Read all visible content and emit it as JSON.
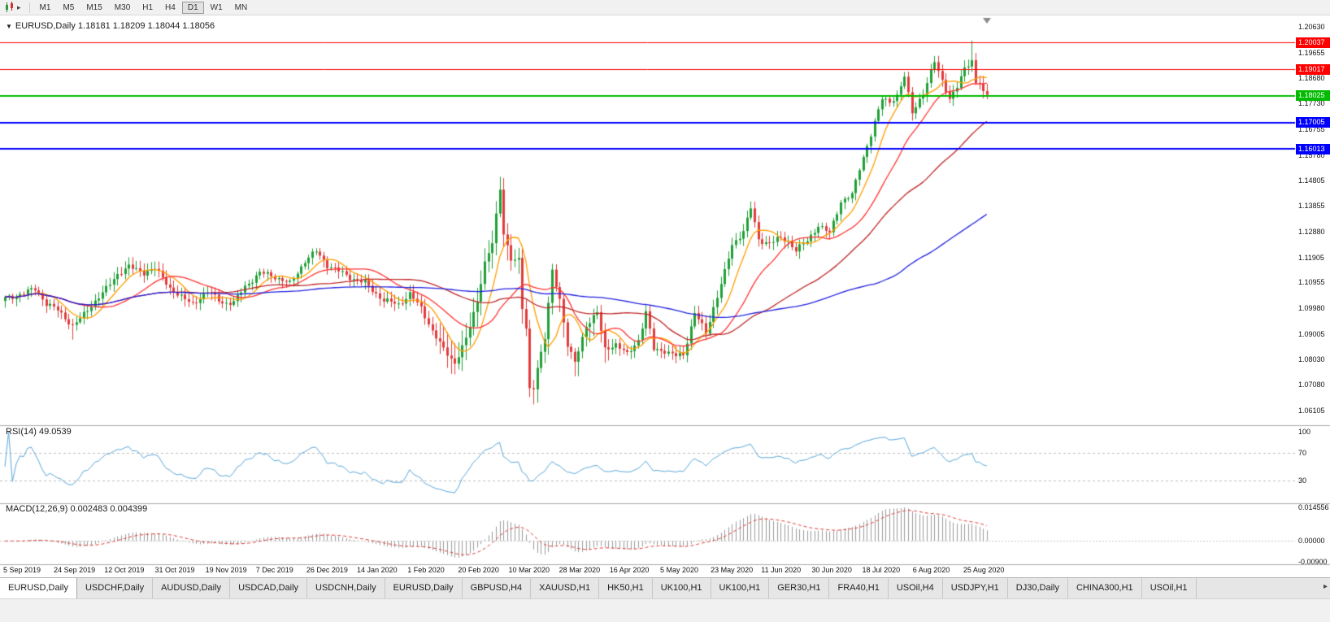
{
  "toolbar": {
    "timeframes": [
      "M1",
      "M5",
      "M15",
      "M30",
      "H1",
      "H4",
      "D1",
      "W1",
      "MN"
    ],
    "active_timeframe": "D1"
  },
  "chart": {
    "title_text": "EURUSD,Daily 1.18181 1.18209 1.18044 1.18056",
    "dropdown_icon": "▼"
  },
  "chart_data": {
    "type": "candlestick",
    "symbol": "EURUSD",
    "timeframe": "Daily",
    "ohlc": {
      "open": 1.18181,
      "high": 1.18209,
      "low": 1.18044,
      "close": 1.18056
    },
    "price_axis": {
      "max": 1.2063,
      "min": 1.06105,
      "labels": [
        "1.20630",
        "1.19655",
        "1.18680",
        "1.17730",
        "1.16755",
        "1.15780",
        "1.14805",
        "1.13855",
        "1.12880",
        "1.11905",
        "1.10955",
        "1.09980",
        "1.09005",
        "1.08030",
        "1.07080",
        "1.06105"
      ]
    },
    "date_axis_labels": [
      "5 Sep 2019",
      "24 Sep 2019",
      "12 Oct 2019",
      "31 Oct 2019",
      "19 Nov 2019",
      "7 Dec 2019",
      "26 Dec 2019",
      "14 Jan 2020",
      "1 Feb 2020",
      "20 Feb 2020",
      "10 Mar 2020",
      "28 Mar 2020",
      "16 Apr 2020",
      "5 May 2020",
      "23 May 2020",
      "11 Jun 2020",
      "30 Jun 2020",
      "18 Jul 2020",
      "6 Aug 2020",
      "25 Aug 2020"
    ],
    "horizontal_lines": [
      {
        "price": 1.20037,
        "label": "1.20037",
        "color": "#ff0000",
        "width": 1
      },
      {
        "price": 1.19017,
        "label": "1.19017",
        "color": "#ff0000",
        "width": 1
      },
      {
        "price": 1.18025,
        "label": "1.18025",
        "color": "#00bb00",
        "width": 2
      },
      {
        "price": 1.17005,
        "label": "1.17005",
        "color": "#0000ff",
        "width": 2
      },
      {
        "price": 1.16013,
        "label": "1.16013",
        "color": "#0000ff",
        "width": 2
      }
    ],
    "bars_total": 263,
    "anchors": [
      [
        0,
        1.1035
      ],
      [
        4,
        1.105
      ],
      [
        8,
        1.1072
      ],
      [
        11,
        1.1015
      ],
      [
        14,
        1.0992
      ],
      [
        18,
        1.093
      ],
      [
        21,
        1.0975
      ],
      [
        25,
        1.104
      ],
      [
        30,
        1.1125
      ],
      [
        33,
        1.1158
      ],
      [
        37,
        1.113
      ],
      [
        40,
        1.1152
      ],
      [
        44,
        1.1072
      ],
      [
        50,
        1.1012
      ],
      [
        54,
        1.1062
      ],
      [
        58,
        1.1018
      ],
      [
        61,
        1.102
      ],
      [
        64,
        1.108
      ],
      [
        68,
        1.1132
      ],
      [
        72,
        1.1118
      ],
      [
        76,
        1.109
      ],
      [
        80,
        1.1178
      ],
      [
        83,
        1.1212
      ],
      [
        86,
        1.1162
      ],
      [
        91,
        1.1122
      ],
      [
        96,
        1.1092
      ],
      [
        101,
        1.1028
      ],
      [
        105,
        1.1012
      ],
      [
        108,
        1.1052
      ],
      [
        111,
        1.0998
      ],
      [
        114,
        1.0912
      ],
      [
        117,
        1.0842
      ],
      [
        120,
        1.079
      ],
      [
        123,
        1.0882
      ],
      [
        126,
        1.1026
      ],
      [
        128,
        1.117
      ],
      [
        130,
        1.1245
      ],
      [
        132,
        1.145
      ],
      [
        133,
        1.1282
      ],
      [
        135,
        1.1184
      ],
      [
        137,
        1.118
      ],
      [
        138,
        1.0998
      ],
      [
        139,
        1.092
      ],
      [
        140,
        1.0692
      ],
      [
        141,
        1.07
      ],
      [
        142,
        1.0772
      ],
      [
        144,
        1.0885
      ],
      [
        146,
        1.114
      ],
      [
        148,
        1.1032
      ],
      [
        150,
        1.0858
      ],
      [
        152,
        1.0792
      ],
      [
        155,
        1.0932
      ],
      [
        158,
        1.0982
      ],
      [
        160,
        1.0842
      ],
      [
        163,
        1.0862
      ],
      [
        166,
        1.0822
      ],
      [
        169,
        1.0878
      ],
      [
        171,
        1.0982
      ],
      [
        173,
        1.0842
      ],
      [
        176,
        1.0838
      ],
      [
        179,
        1.0816
      ],
      [
        181,
        1.0822
      ],
      [
        184,
        1.0982
      ],
      [
        187,
        1.0902
      ],
      [
        189,
        1.1002
      ],
      [
        192,
        1.1134
      ],
      [
        194,
        1.1236
      ],
      [
        197,
        1.1292
      ],
      [
        199,
        1.1376
      ],
      [
        201,
        1.1256
      ],
      [
        204,
        1.1246
      ],
      [
        207,
        1.1262
      ],
      [
        209,
        1.1252
      ],
      [
        211,
        1.1218
      ],
      [
        214,
        1.1252
      ],
      [
        217,
        1.1312
      ],
      [
        220,
        1.1282
      ],
      [
        223,
        1.1402
      ],
      [
        226,
        1.1428
      ],
      [
        228,
        1.1526
      ],
      [
        231,
        1.1656
      ],
      [
        234,
        1.1792
      ],
      [
        236,
        1.1778
      ],
      [
        238,
        1.1802
      ],
      [
        240,
        1.1876
      ],
      [
        242,
        1.1738
      ],
      [
        245,
        1.1812
      ],
      [
        248,
        1.1932
      ],
      [
        250,
        1.1858
      ],
      [
        252,
        1.1792
      ],
      [
        254,
        1.1836
      ],
      [
        256,
        1.1904
      ],
      [
        258,
        1.1936
      ],
      [
        259,
        1.1852
      ],
      [
        260,
        1.1856
      ],
      [
        261,
        1.1812
      ],
      [
        262,
        1.1806
      ]
    ],
    "wick_overrides": [
      [
        18,
        "l",
        1.0879
      ],
      [
        120,
        "l",
        1.0778
      ],
      [
        132,
        "h",
        1.1495
      ],
      [
        141,
        "l",
        1.0636
      ],
      [
        258,
        "h",
        1.2011
      ]
    ],
    "volatility_boost": {
      "from": 116,
      "to": 162,
      "factor": 2.1
    },
    "candle_colors": {
      "up": "#21a038",
      "down": "#e23b3b"
    },
    "moving_averages": [
      {
        "period": 8,
        "color": "#ff9e00"
      },
      {
        "period": 20,
        "color": "#ff3333"
      },
      {
        "period": 45,
        "color": "#c02828"
      },
      {
        "period": 100,
        "color": "#2222e0"
      }
    ],
    "rsi": {
      "label": "RSI(14) 49.0539",
      "period": 14,
      "value": 49.0539,
      "levels": [
        70,
        30
      ],
      "axis_labels": [
        "100",
        "70",
        "30"
      ],
      "color": "#5ba7d9"
    },
    "macd": {
      "label": "MACD(12,26,9) 0.002483 0.004399",
      "fast": 12,
      "slow": 26,
      "signal": 9,
      "main_value": 0.002483,
      "signal_value": 0.004399,
      "axis_labels": [
        "0.014556",
        "0.00000",
        "-0.00900"
      ],
      "axis_values": [
        0.014556,
        0,
        -0.009
      ],
      "histogram_color": "#9c9c9c",
      "signal_color": "#e23b3b"
    }
  },
  "tabs": {
    "items": [
      {
        "label": "EURUSD,Daily",
        "active": true
      },
      {
        "label": "USDCHF,Daily",
        "active": false
      },
      {
        "label": "AUDUSD,Daily",
        "active": false
      },
      {
        "label": "USDCAD,Daily",
        "active": false
      },
      {
        "label": "USDCNH,Daily",
        "active": false
      },
      {
        "label": "EURUSD,Daily",
        "active": false
      },
      {
        "label": "GBPUSD,H4",
        "active": false
      },
      {
        "label": "XAUUSD,H1",
        "active": false
      },
      {
        "label": "HK50,H1",
        "active": false
      },
      {
        "label": "UK100,H1",
        "active": false
      },
      {
        "label": "UK100,H1",
        "active": false
      },
      {
        "label": "GER30,H1",
        "active": false
      },
      {
        "label": "FRA40,H1",
        "active": false
      },
      {
        "label": "USOil,H4",
        "active": false
      },
      {
        "label": "USDJPY,H1",
        "active": false
      },
      {
        "label": "DJ30,Daily",
        "active": false
      },
      {
        "label": "CHINA300,H1",
        "active": false
      },
      {
        "label": "USOil,H1",
        "active": false
      }
    ],
    "scroll_right_icon": "▸"
  }
}
